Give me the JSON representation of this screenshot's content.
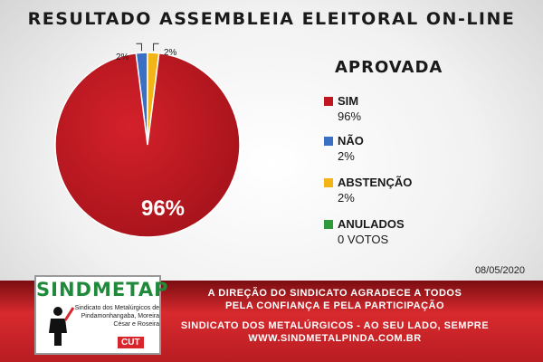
{
  "title": "RESULTADO ASSEMBLEIA ELEITORAL ON-LINE",
  "status": "APROVADA",
  "date": "08/05/2020",
  "chart_data": {
    "type": "pie",
    "title": "RESULTADO ASSEMBLEIA ELEITORAL ON-LINE",
    "slices": [
      {
        "label": "SIM",
        "value": 96,
        "display": "96%",
        "color": "#c0161f"
      },
      {
        "label": "NÃO",
        "value": 2,
        "display": "2%",
        "color": "#3a6fc4"
      },
      {
        "label": "ABSTENÇÃO",
        "value": 2,
        "display": "2%",
        "color": "#f2b417"
      },
      {
        "label": "ANULADOS",
        "value": 0,
        "display": "0 VOTOS",
        "color": "#2e9a3a"
      }
    ],
    "inner_label": "96%",
    "callouts": [
      "2%",
      "2%"
    ],
    "legend_position": "right"
  },
  "footer": {
    "line1": "A DIREÇÃO DO SINDICATO AGRADECE A TODOS",
    "line2": "PELA CONFIANÇA E PELA PARTICIPAÇÃO",
    "line3": "SINDICATO DOS METALÚRGICOS - AO SEU LADO, SEMPRE",
    "line4": "WWW.SINDMETALPINDA.COM.BR"
  },
  "logo": {
    "name": "SINDMETAP",
    "text": "Sindicato dos Metalúrgicos de Pindamonhangaba, Moreira César e Roseira",
    "badge": "CUT"
  }
}
